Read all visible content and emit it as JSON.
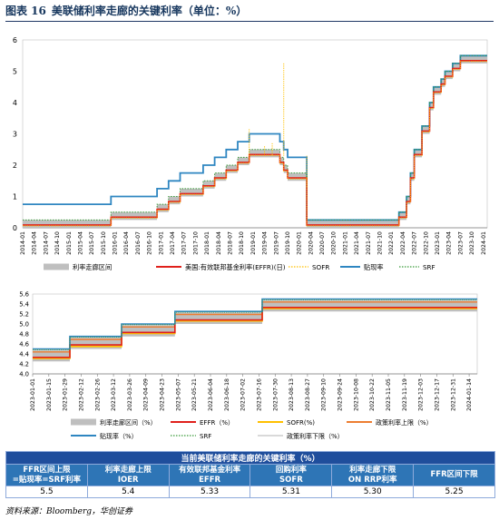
{
  "figure": {
    "number": "图表 16",
    "title": "美联储利率走廊的关键利率（单位：%）"
  },
  "chart_data": [
    {
      "type": "line",
      "yticks": [
        "0",
        "1",
        "2",
        "3",
        "4",
        "5",
        "6"
      ],
      "ylim": [
        0,
        6
      ],
      "xticks": [
        "2014-01",
        "2014-04",
        "2014-07",
        "2014-10",
        "2015-01",
        "2015-04",
        "2015-07",
        "2015-10",
        "2016-01",
        "2016-04",
        "2016-07",
        "2016-10",
        "2017-01",
        "2017-04",
        "2017-07",
        "2017-10",
        "2018-01",
        "2018-04",
        "2018-07",
        "2018-10",
        "2019-01",
        "2019-04",
        "2019-07",
        "2019-10",
        "2020-01",
        "2020-04",
        "2020-07",
        "2020-10",
        "2021-01",
        "2021-04",
        "2021-07",
        "2021-10",
        "2022-01",
        "2022-04",
        "2022-07",
        "2022-10",
        "2023-01",
        "2023-04",
        "2023-07",
        "2023-10",
        "2024-01"
      ],
      "legend": [
        "利率走廊区间",
        "美国:有效联邦基金利率(EFFR)(日)",
        "SOFR",
        "贴现率",
        "SRF"
      ],
      "xlim": [
        "2014-01",
        "2024-02"
      ],
      "policy_steps": [
        {
          "x": "2014-01",
          "lo": 0,
          "hi": 0.25
        },
        {
          "x": "2015-12",
          "lo": 0.25,
          "hi": 0.5
        },
        {
          "x": "2016-12",
          "lo": 0.5,
          "hi": 0.75
        },
        {
          "x": "2017-03",
          "lo": 0.75,
          "hi": 1.0
        },
        {
          "x": "2017-06",
          "lo": 1.0,
          "hi": 1.25
        },
        {
          "x": "2017-12",
          "lo": 1.25,
          "hi": 1.5
        },
        {
          "x": "2018-03",
          "lo": 1.5,
          "hi": 1.75
        },
        {
          "x": "2018-06",
          "lo": 1.75,
          "hi": 2.0
        },
        {
          "x": "2018-09",
          "lo": 2.0,
          "hi": 2.25
        },
        {
          "x": "2018-12",
          "lo": 2.25,
          "hi": 2.5
        },
        {
          "x": "2019-08",
          "lo": 2.0,
          "hi": 2.25
        },
        {
          "x": "2019-09",
          "lo": 1.75,
          "hi": 2.0
        },
        {
          "x": "2019-10",
          "lo": 1.5,
          "hi": 1.75
        },
        {
          "x": "2020-03",
          "lo": 0,
          "hi": 0.25
        },
        {
          "x": "2022-03",
          "lo": 0.25,
          "hi": 0.5
        },
        {
          "x": "2022-05",
          "lo": 0.75,
          "hi": 1.0
        },
        {
          "x": "2022-06",
          "lo": 1.5,
          "hi": 1.75
        },
        {
          "x": "2022-07",
          "lo": 2.25,
          "hi": 2.5
        },
        {
          "x": "2022-09",
          "lo": 3.0,
          "hi": 3.25
        },
        {
          "x": "2022-11",
          "lo": 3.75,
          "hi": 4.0
        },
        {
          "x": "2022-12",
          "lo": 4.25,
          "hi": 4.5
        },
        {
          "x": "2023-02",
          "lo": 4.5,
          "hi": 4.75
        },
        {
          "x": "2023-03",
          "lo": 4.75,
          "hi": 5.0
        },
        {
          "x": "2023-05",
          "lo": 5.0,
          "hi": 5.25
        },
        {
          "x": "2023-07",
          "lo": 5.25,
          "hi": 5.5
        }
      ],
      "effr_over_lo": 0.09,
      "discount": [
        {
          "x": "2014-01",
          "y": 0.75
        },
        {
          "x": "2015-12",
          "y": 1.0
        },
        {
          "x": "2016-12",
          "y": 1.25
        },
        {
          "x": "2017-03",
          "y": 1.5
        },
        {
          "x": "2017-06",
          "y": 1.75
        },
        {
          "x": "2017-12",
          "y": 2.0
        },
        {
          "x": "2018-03",
          "y": 2.25
        },
        {
          "x": "2018-06",
          "y": 2.5
        },
        {
          "x": "2018-09",
          "y": 2.75
        },
        {
          "x": "2018-12",
          "y": 3.0
        },
        {
          "x": "2019-08",
          "y": 2.75
        },
        {
          "x": "2019-09",
          "y": 2.5
        },
        {
          "x": "2019-10",
          "y": 2.25
        },
        {
          "x": "2020-03",
          "y": 0.25
        },
        {
          "x": "2022-03",
          "y": 0.5
        },
        {
          "x": "2022-05",
          "y": 1.0
        },
        {
          "x": "2022-06",
          "y": 1.75
        },
        {
          "x": "2022-07",
          "y": 2.5
        },
        {
          "x": "2022-09",
          "y": 3.25
        },
        {
          "x": "2022-11",
          "y": 4.0
        },
        {
          "x": "2022-12",
          "y": 4.5
        },
        {
          "x": "2023-02",
          "y": 4.75
        },
        {
          "x": "2023-03",
          "y": 5.0
        },
        {
          "x": "2023-05",
          "y": 5.25
        },
        {
          "x": "2023-07",
          "y": 5.5
        },
        {
          "x": "2024-02",
          "y": 5.5
        }
      ],
      "sofr_spikes": [
        {
          "x": "2018-12",
          "y": 3.15
        },
        {
          "x": "2019-04",
          "y": 2.6
        },
        {
          "x": "2019-06",
          "y": 2.7
        },
        {
          "x": "2019-09",
          "y": 5.25
        },
        {
          "x": "2020-03",
          "y": 1.3
        }
      ]
    },
    {
      "type": "line",
      "yticks": [
        "4.0",
        "4.2",
        "4.4",
        "4.6",
        "4.8",
        "5.0",
        "5.2",
        "5.4",
        "5.6"
      ],
      "ylim": [
        4.0,
        5.6
      ],
      "xticks": [
        "2023-01-01",
        "2023-01-15",
        "2023-01-29",
        "2023-02-12",
        "2023-02-26",
        "2023-03-12",
        "2023-03-26",
        "2023-04-09",
        "2023-04-23",
        "2023-05-07",
        "2023-05-21",
        "2023-06-04",
        "2023-06-18",
        "2023-07-02",
        "2023-07-16",
        "2023-07-30",
        "2023-08-13",
        "2023-08-27",
        "2023-09-10",
        "2023-09-24",
        "2023-10-08",
        "2023-10-22",
        "2023-11-05",
        "2023-11-19",
        "2023-12-03",
        "2023-12-17",
        "2023-12-31",
        "2024-01-14"
      ],
      "legend": [
        "利率走廊区间（%）",
        "EFFR（%）",
        "SOFR(%)",
        "政策利率上限（%）",
        "贴现率（%）",
        "SRF",
        "政策利率下限（%）"
      ],
      "steps": [
        {
          "x": 0,
          "lo": 4.25,
          "hi": 4.5,
          "effr": 4.33,
          "sofr": 4.31,
          "discount": 4.5
        },
        {
          "x": 2.3,
          "lo": 4.5,
          "hi": 4.75,
          "effr": 4.58,
          "sofr": 4.55,
          "discount": 4.75
        },
        {
          "x": 5.5,
          "lo": 4.75,
          "hi": 5.0,
          "effr": 4.83,
          "sofr": 4.81,
          "discount": 5.0
        },
        {
          "x": 8.8,
          "lo": 5.0,
          "hi": 5.25,
          "effr": 5.08,
          "sofr": 5.06,
          "discount": 5.25
        },
        {
          "x": 14.2,
          "lo": 5.25,
          "hi": 5.5,
          "effr": 5.33,
          "sofr": 5.31,
          "discount": 5.5
        },
        {
          "x": 27.5
        }
      ]
    }
  ],
  "table": {
    "caption": "当前美联储利率走廊的关键利率（%）",
    "headers": [
      [
        "FFR区间上限",
        "=贴现率=SRF利率"
      ],
      [
        "利率走廊上限",
        "IOER"
      ],
      [
        "有效联邦基金利率",
        "EFFR"
      ],
      [
        "回购利率",
        "SOFR"
      ],
      [
        "利率走廊下限",
        "ON RRP利率"
      ],
      [
        "FFR区间下限",
        ""
      ]
    ],
    "values": [
      "5.5",
      "5.4",
      "5.33",
      "5.31",
      "5.30",
      "5.25"
    ]
  },
  "source": "资料来源：Bloomberg，华创证券",
  "colors": {
    "corridor": "#bfbfbf",
    "effr": "#e0201b",
    "sofr": "#ffc000",
    "discount": "#2e86c1",
    "srf": "#3a9a3a",
    "policy_upper": "#ed7d31",
    "policy_lower": "#d9d9d9"
  }
}
